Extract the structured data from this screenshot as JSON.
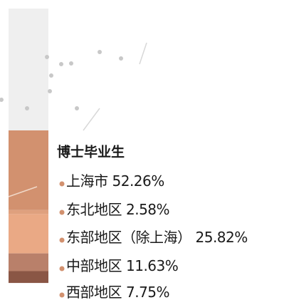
{
  "chart_data": {
    "type": "stacked-bar",
    "title": "博士毕业生",
    "series": [
      {
        "name": "上海市",
        "color": "#d2916f",
        "values": [
          52.26
        ],
        "value_labels": [
          "52.26%"
        ]
      },
      {
        "name": "东北地区",
        "color": "#dfa07e",
        "values": [
          2.58
        ],
        "value_labels": [
          "2.58%"
        ]
      },
      {
        "name": "东部地区（除上海）",
        "color": "#eaa985",
        "values": [
          25.82
        ],
        "value_labels": [
          "25.82%"
        ]
      },
      {
        "name": "中部地区",
        "color": "#b9806a",
        "values": [
          11.63
        ],
        "value_labels": [
          "11.63%"
        ]
      },
      {
        "name": "西部地区",
        "color": "#8a5645",
        "values": [
          7.75
        ],
        "value_labels": [
          "7.75%"
        ]
      }
    ]
  }
}
